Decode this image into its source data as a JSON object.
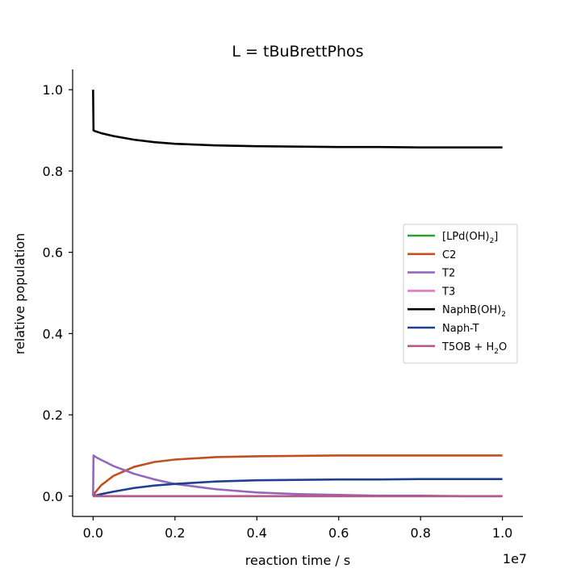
{
  "chart_data": {
    "type": "line",
    "title": "L = tBuBrettPhos",
    "xlabel": "reaction time / s",
    "ylabel": "relative population",
    "x_offset_label": "1e7",
    "xlim": [
      -0.05,
      1.05
    ],
    "ylim": [
      -0.05,
      1.05
    ],
    "x_ticks": [
      0.0,
      0.2,
      0.4,
      0.6,
      0.8,
      1.0
    ],
    "x_tick_labels": [
      "0.0",
      "0.2",
      "0.4",
      "0.6",
      "0.8",
      "1.0"
    ],
    "y_ticks": [
      0.0,
      0.2,
      0.4,
      0.6,
      0.8,
      1.0
    ],
    "y_tick_labels": [
      "0.0",
      "0.2",
      "0.4",
      "0.6",
      "0.8",
      "1.0"
    ],
    "grid": false,
    "legend_position": "right",
    "x": [
      0,
      0.001,
      0.005,
      0.02,
      0.05,
      0.1,
      0.15,
      0.2,
      0.3,
      0.4,
      0.5,
      0.6,
      0.7,
      0.8,
      0.9,
      1.0
    ],
    "series": [
      {
        "name": "[LPd(OH)",
        "name_sub": "2",
        "name_after": "]",
        "color": "#2ca02c",
        "values": [
          0,
          0,
          0,
          0,
          0,
          0,
          0,
          0,
          0,
          0,
          0,
          0,
          0,
          0,
          0,
          0
        ]
      },
      {
        "name": "C2",
        "color": "#c0501f",
        "values": [
          0,
          0.002,
          0.009,
          0.027,
          0.05,
          0.072,
          0.084,
          0.09,
          0.096,
          0.098,
          0.099,
          0.1,
          0.1,
          0.1,
          0.1,
          0.1
        ]
      },
      {
        "name": "T2",
        "color": "#9467bd",
        "values": [
          0,
          0.1,
          0.097,
          0.089,
          0.074,
          0.055,
          0.041,
          0.03,
          0.017,
          0.009,
          0.005,
          0.003,
          0.001,
          0.001,
          0,
          0
        ]
      },
      {
        "name": "T3",
        "color": "#e377c2",
        "values": [
          0,
          0,
          0,
          0,
          0,
          0,
          0,
          0,
          0,
          0,
          0,
          0,
          0,
          0,
          0,
          0
        ]
      },
      {
        "name": "NaphB(OH)",
        "name_sub": "2",
        "color": "#000000",
        "values": [
          1.0,
          0.9,
          0.898,
          0.893,
          0.886,
          0.877,
          0.871,
          0.867,
          0.863,
          0.861,
          0.86,
          0.859,
          0.859,
          0.858,
          0.858,
          0.858
        ]
      },
      {
        "name": "Naph-T",
        "color": "#1f3f8f",
        "values": [
          0,
          0,
          0.001,
          0.005,
          0.011,
          0.02,
          0.026,
          0.03,
          0.036,
          0.039,
          0.04,
          0.041,
          0.041,
          0.042,
          0.042,
          0.042
        ]
      },
      {
        "name": "T5OB + H",
        "name_sub": "2",
        "name_after": "O",
        "color": "#b5588a",
        "values": [
          0,
          0,
          0,
          0,
          0,
          0,
          0,
          0,
          0,
          0,
          0,
          0,
          0,
          0,
          0,
          0
        ]
      }
    ]
  }
}
